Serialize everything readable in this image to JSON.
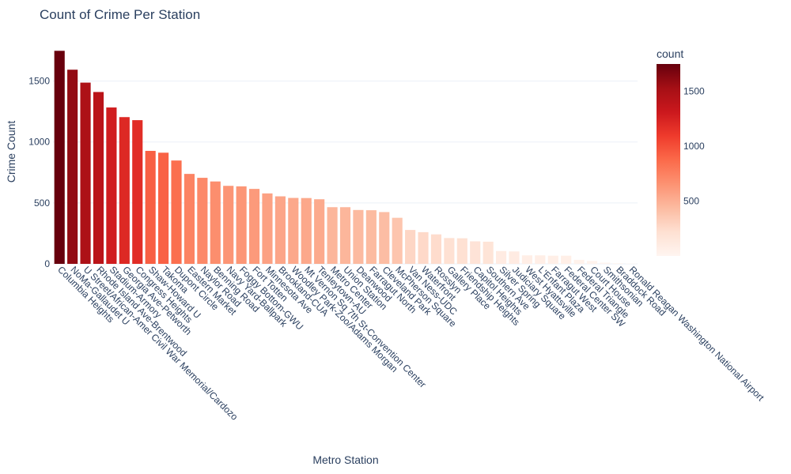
{
  "chart_data": {
    "type": "bar",
    "title": "Count of Crime Per Station",
    "xlabel": "Metro Station",
    "ylabel": "Crime Count",
    "ylim": [
      0,
      1750
    ],
    "yticks": [
      0,
      500,
      1000,
      1500
    ],
    "grid": true,
    "colorbar": {
      "title": "count",
      "ticks": [
        500,
        1000,
        1500
      ],
      "range": [
        0,
        1750
      ],
      "colors": [
        "#fff5f0",
        "#fee0d2",
        "#fcbba1",
        "#fc9272",
        "#fb6a4a",
        "#ef3b2c",
        "#cb181d",
        "#a50f15",
        "#67000d"
      ]
    },
    "categories": [
      "Columbia Heights",
      "NoMa-Gallaudet U",
      "U Street/African-Amer Civil War Memorial/Cardozo",
      "Rhode Island Ave-Brentwood",
      "Stadium-Armory",
      "Georgia Ave-Petworth",
      "Congress Heights",
      "Shaw-Howard U",
      "Takoma",
      "Dupont Circle",
      "Eastern Market",
      "Naylor Road",
      "Benning Road",
      "Navy Yard-Ballpark",
      "Foggy Bottom-GWU",
      "Fort Totten",
      "Minnesota Ave",
      "Brookland-CUA",
      "Woodley Park-Zoo/Adams Morgan",
      "Mt Vernon Sq 7th St-Convention Center",
      "Tenleytown-AU",
      "Metro Center",
      "Union Station",
      "Deanwood",
      "Farragut North",
      "Cleveland Park",
      "McPherson Square",
      "Van Ness-UDC",
      "Waterfront",
      "Rosslyn",
      "Gallery Place",
      "Friendship Heights",
      "Capitol Heights",
      "Southern Ave",
      "Silver Spring",
      "Judiciary Square",
      "West Hyattsville",
      "L'Enfant Plaza",
      "Farragut West",
      "Federal Center SW",
      "Federal Triangle",
      "Court House",
      "Smithsonian",
      "Braddock Road",
      "Ronald Reagan Washington National Airport"
    ],
    "values": [
      1748,
      1593,
      1487,
      1410,
      1283,
      1204,
      1179,
      927,
      912,
      848,
      738,
      706,
      676,
      640,
      636,
      615,
      578,
      554,
      541,
      540,
      530,
      465,
      465,
      442,
      440,
      425,
      378,
      278,
      260,
      242,
      212,
      210,
      185,
      182,
      105,
      102,
      70,
      70,
      67,
      67,
      33,
      24,
      10,
      5,
      3
    ]
  }
}
